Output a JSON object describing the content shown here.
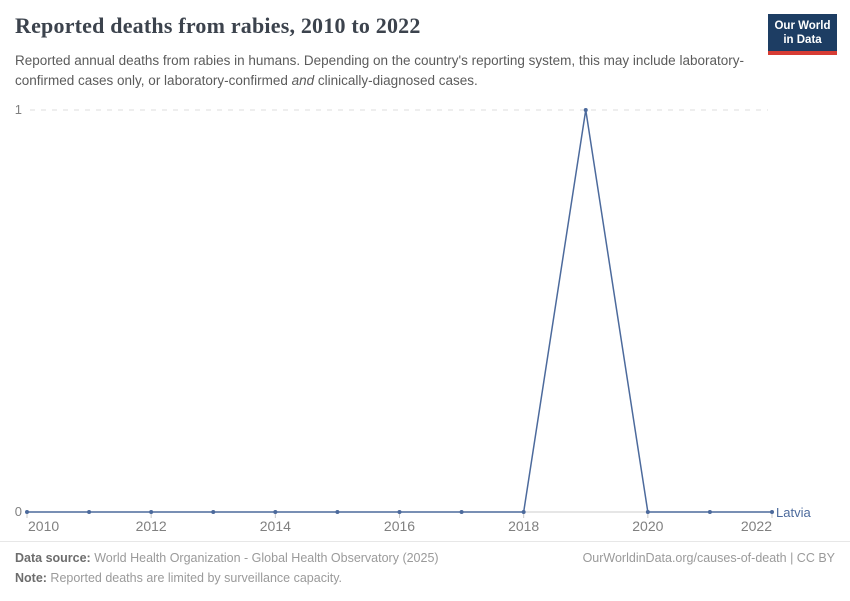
{
  "header": {
    "title": "Reported deaths from rabies, 2010 to 2022",
    "subtitle_part1": "Reported annual deaths from rabies in humans. Depending on the country's reporting system, this may include laboratory-confirmed cases only, or laboratory-confirmed ",
    "subtitle_italic": "and",
    "subtitle_part2": " clinically-diagnosed cases.",
    "logo_line1": "Our World",
    "logo_line2": "in Data"
  },
  "chart_data": {
    "type": "line",
    "title": "Reported deaths from rabies, 2010 to 2022",
    "xlabel": "",
    "ylabel": "",
    "x": [
      2010,
      2011,
      2012,
      2013,
      2014,
      2015,
      2016,
      2017,
      2018,
      2019,
      2020,
      2021,
      2022
    ],
    "series": [
      {
        "name": "Latvia",
        "color": "#4c6a9c",
        "values": [
          0,
          0,
          0,
          0,
          0,
          0,
          0,
          0,
          0,
          1,
          0,
          0,
          0
        ]
      }
    ],
    "xticks": [
      2010,
      2012,
      2014,
      2016,
      2018,
      2020,
      2022
    ],
    "yticks": [
      0,
      1
    ],
    "xlim": [
      2010,
      2022
    ],
    "ylim": [
      0,
      1
    ],
    "grid": "horizontal dashed gridline at y=1 only",
    "legend_position": "end-of-line entity label",
    "markers": "small dot at every yearly data point"
  },
  "colors": {
    "line": "#4c6a9c",
    "logo_background": "#1d3d63",
    "logo_bar": "#d73c34",
    "gridline": "#dcdcdc",
    "axis": "#cccccc",
    "tick_label": "#808080"
  },
  "footer": {
    "source_label": "Data source:",
    "source_text": " World Health Organization - Global Health Observatory (2025)",
    "note_label": "Note:",
    "note_text": " Reported deaths are limited by surveillance capacity.",
    "link_text": "OurWorldinData.org/causes-of-death | CC BY"
  }
}
